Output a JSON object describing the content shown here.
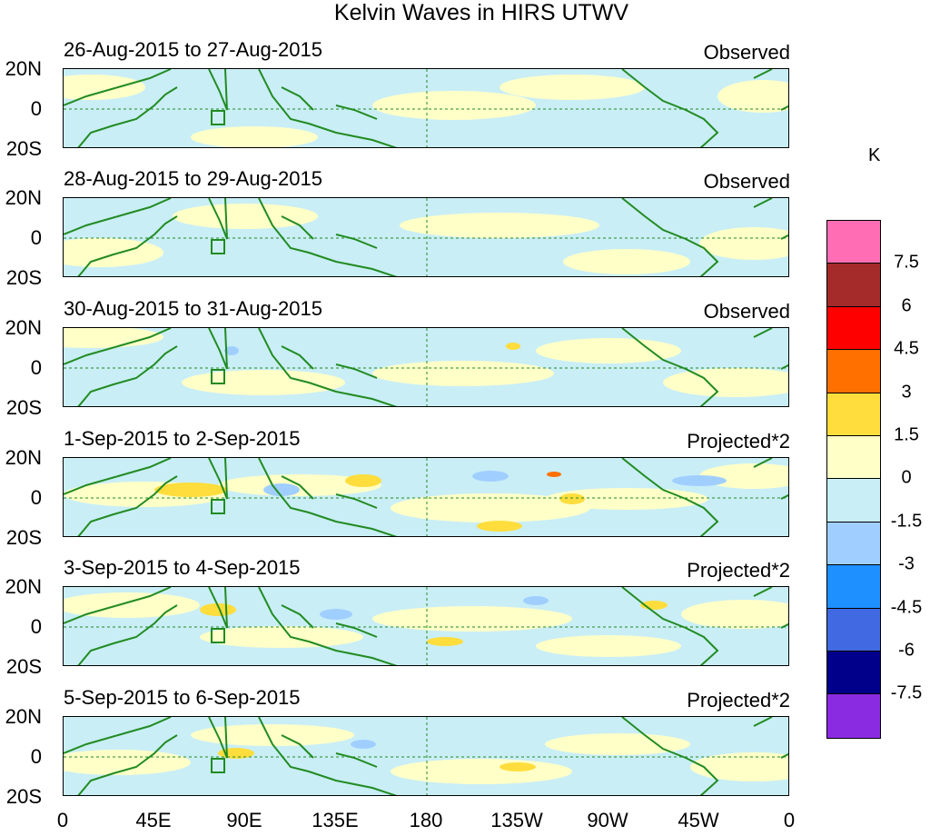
{
  "title": "Kelvin Waves in HIRS UTWV",
  "panels": [
    {
      "date_range": "26-Aug-2015 to 27-Aug-2015",
      "label": "Observed"
    },
    {
      "date_range": "28-Aug-2015 to 29-Aug-2015",
      "label": "Observed"
    },
    {
      "date_range": "30-Aug-2015 to 31-Aug-2015",
      "label": "Observed"
    },
    {
      "date_range": "1-Sep-2015 to 2-Sep-2015",
      "label": "Projected*2"
    },
    {
      "date_range": "3-Sep-2015 to 4-Sep-2015",
      "label": "Projected*2"
    },
    {
      "date_range": "5-Sep-2015 to 6-Sep-2015",
      "label": "Projected*2"
    }
  ],
  "y_axis": {
    "top": "20N",
    "mid": "0",
    "bottom": "20S"
  },
  "x_axis": [
    "0",
    "45E",
    "90E",
    "135E",
    "180",
    "135W",
    "90W",
    "45W",
    "0"
  ],
  "colorbar": {
    "unit": "K",
    "tick_labels": [
      "7.5",
      "6",
      "4.5",
      "3",
      "1.5",
      "0",
      "-1.5",
      "-3",
      "-4.5",
      "-6",
      "-7.5"
    ],
    "colors": [
      "#ff6eb4",
      "#a52a2a",
      "#ff0000",
      "#ff7000",
      "#ffdd3c",
      "#ffffc8",
      "#c9eef6",
      "#a0cfff",
      "#1e90ff",
      "#4169e1",
      "#00008b",
      "#8a2be2"
    ]
  }
}
